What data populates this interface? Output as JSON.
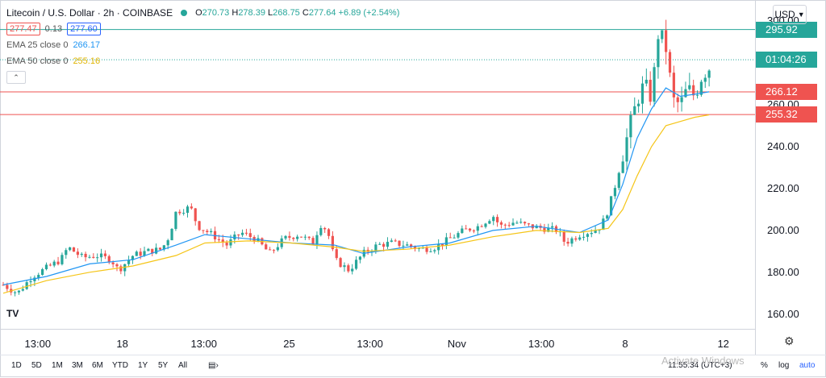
{
  "header": {
    "symbol": "Litecoin / U.S. Dollar · 2h · COINBASE",
    "ohlc": {
      "o_label": "O",
      "o": "270.73",
      "h_label": "H",
      "h": "278.39",
      "l_label": "L",
      "l": "268.75",
      "c_label": "C",
      "c": "277.64",
      "change": "+6.89 (+2.54%)"
    },
    "bid": "277.47",
    "spread": "0.13",
    "ask": "277.60"
  },
  "indicators": [
    {
      "label": "EMA 25 close 0",
      "value": "266.17",
      "color": "#2196f3"
    },
    {
      "label": "EMA 50 close 0",
      "value": "255.16",
      "color": "#f5c518"
    }
  ],
  "currency": "USD",
  "price_axis": [
    "160.00",
    "180.00",
    "200.00",
    "220.00",
    "240.00",
    "260.00",
    "280.00",
    "300.00"
  ],
  "price_labels": [
    {
      "value": "295.92",
      "color": "#26a69a"
    },
    {
      "value": "01:04:26",
      "color": "#26a69a"
    },
    {
      "value": "266.12",
      "color": "#ef5350"
    },
    {
      "value": "255.32",
      "color": "#ef5350"
    }
  ],
  "time_axis": [
    {
      "label": "13:00",
      "pos": 0.05
    },
    {
      "label": "18",
      "pos": 0.162
    },
    {
      "label": "13:00",
      "pos": 0.27
    },
    {
      "label": "25",
      "pos": 0.383
    },
    {
      "label": "13:00",
      "pos": 0.49
    },
    {
      "label": "Nov",
      "pos": 0.605
    },
    {
      "label": "13:00",
      "pos": 0.717
    },
    {
      "label": "8",
      "pos": 0.828
    },
    {
      "label": "12",
      "pos": 0.958
    }
  ],
  "periods": [
    "1D",
    "5D",
    "1M",
    "3M",
    "6M",
    "YTD",
    "1Y",
    "5Y",
    "All"
  ],
  "bottom_right": {
    "time": "11:55:34 (UTC+3)",
    "percent": "%",
    "log": "log",
    "auto": "auto"
  },
  "watermark": "Activate Windows",
  "colors": {
    "up": "#26a69a",
    "down": "#ef5350",
    "ema25": "#2196f3",
    "ema50": "#f5c518"
  },
  "chart_data": {
    "type": "candlestick",
    "title": "Litecoin / U.S. Dollar · 2h · COINBASE",
    "ylim": [
      153,
      310
    ],
    "x_range": [
      0,
      100
    ],
    "hlines": [
      {
        "value": 295.92,
        "color": "#26a69a",
        "style": "solid"
      },
      {
        "value": 281.5,
        "color": "#26a69a",
        "style": "dotted"
      },
      {
        "value": 266.12,
        "color": "#ef5350",
        "style": "solid"
      },
      {
        "value": 255.32,
        "color": "#ef5350",
        "style": "solid"
      }
    ],
    "price_path": [
      [
        0,
        174
      ],
      [
        2,
        170
      ],
      [
        4,
        178
      ],
      [
        6,
        182
      ],
      [
        8,
        186
      ],
      [
        9,
        192
      ],
      [
        11,
        187
      ],
      [
        13,
        188
      ],
      [
        15,
        186
      ],
      [
        16,
        181
      ],
      [
        18,
        188
      ],
      [
        20,
        190
      ],
      [
        22,
        191
      ],
      [
        23,
        197
      ],
      [
        24,
        209
      ],
      [
        26,
        211
      ],
      [
        27,
        202
      ],
      [
        29,
        198
      ],
      [
        31,
        193
      ],
      [
        33,
        199
      ],
      [
        35,
        196
      ],
      [
        37,
        189
      ],
      [
        39,
        196
      ],
      [
        41,
        198
      ],
      [
        43,
        194
      ],
      [
        44,
        203
      ],
      [
        45,
        200
      ],
      [
        46,
        186
      ],
      [
        48,
        181
      ],
      [
        50,
        189
      ],
      [
        52,
        193
      ],
      [
        54,
        194
      ],
      [
        56,
        193
      ],
      [
        58,
        191
      ],
      [
        60,
        192
      ],
      [
        62,
        196
      ],
      [
        64,
        200
      ],
      [
        66,
        202
      ],
      [
        68,
        207
      ],
      [
        69,
        202
      ],
      [
        71,
        204
      ],
      [
        73,
        202
      ],
      [
        75,
        201
      ],
      [
        77,
        200
      ],
      [
        78,
        194
      ],
      [
        80,
        198
      ],
      [
        82,
        200
      ],
      [
        83,
        202
      ],
      [
        84,
        210
      ],
      [
        85,
        222
      ],
      [
        86,
        236
      ],
      [
        87,
        250
      ],
      [
        88,
        262
      ],
      [
        89,
        270
      ],
      [
        90,
        263
      ],
      [
        91,
        296
      ],
      [
        92,
        287
      ],
      [
        93,
        262
      ],
      [
        94,
        260
      ],
      [
        95,
        268
      ],
      [
        96,
        264
      ],
      [
        97,
        274
      ],
      [
        98,
        277.64
      ]
    ],
    "ema25": [
      [
        0,
        174
      ],
      [
        6,
        178
      ],
      [
        12,
        184
      ],
      [
        18,
        186
      ],
      [
        24,
        193
      ],
      [
        28,
        198
      ],
      [
        34,
        196
      ],
      [
        40,
        194
      ],
      [
        46,
        193
      ],
      [
        50,
        189
      ],
      [
        56,
        192
      ],
      [
        62,
        194
      ],
      [
        68,
        200
      ],
      [
        74,
        202
      ],
      [
        80,
        199
      ],
      [
        84,
        205
      ],
      [
        86,
        222
      ],
      [
        88,
        244
      ],
      [
        90,
        258
      ],
      [
        92,
        268
      ],
      [
        94,
        264
      ],
      [
        96,
        265
      ],
      [
        98,
        266.17
      ]
    ],
    "ema50": [
      [
        0,
        170
      ],
      [
        6,
        176
      ],
      [
        12,
        180
      ],
      [
        18,
        183
      ],
      [
        24,
        188
      ],
      [
        28,
        194
      ],
      [
        34,
        195
      ],
      [
        40,
        194
      ],
      [
        46,
        192
      ],
      [
        50,
        190
      ],
      [
        56,
        191
      ],
      [
        62,
        193
      ],
      [
        68,
        197
      ],
      [
        74,
        200
      ],
      [
        80,
        199
      ],
      [
        84,
        201
      ],
      [
        86,
        210
      ],
      [
        88,
        226
      ],
      [
        90,
        240
      ],
      [
        92,
        250
      ],
      [
        94,
        252
      ],
      [
        96,
        254
      ],
      [
        98,
        255.16
      ]
    ]
  }
}
